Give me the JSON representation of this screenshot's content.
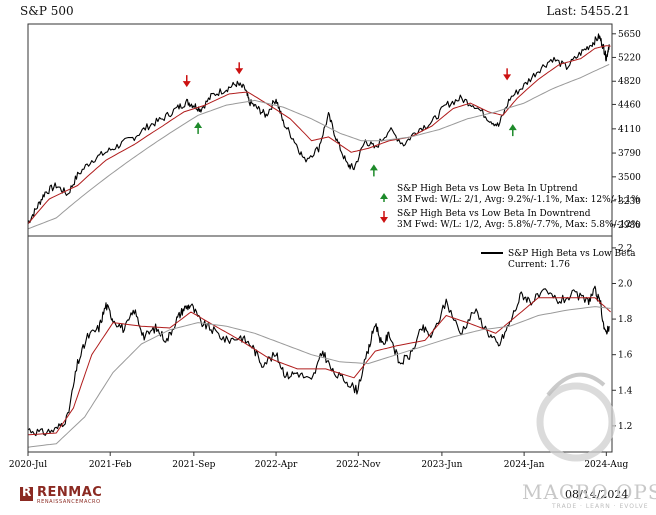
{
  "header": {
    "title": "S&P 500",
    "last": "Last: 5455.21"
  },
  "footer": {
    "date": "08/14/2024",
    "logo_letter": "R",
    "logo_name": "RENMAC",
    "logo_sub": "RENAISSANCEMACRO"
  },
  "watermark": {
    "name": "MACRO OPS",
    "tagline": "TRADE · LEARN · EVOLVE"
  },
  "colors": {
    "price": "#000000",
    "ma_short": "#b01c1c",
    "ma_long": "#9a9a9a",
    "up_arrow": "#1d8a2a",
    "down_arrow": "#cc1111",
    "frame": "#333333"
  },
  "annotations": {
    "uptrend_title": "S&P High Beta vs Low Beta In Uptrend",
    "uptrend_stats": "3M Fwd: W/L: 2/1, Avg: 9.2%/-1.1%, Max: 12%/-1.1%",
    "downtrend_title": "S&P High Beta vs Low Beta In Downtrend",
    "downtrend_stats": "3M Fwd: W/L: 1/2, Avg: 5.8%/-7.7%, Max: 5.8%/-12%"
  },
  "legend": {
    "series": "S&P High Beta vs Low Beta",
    "current": "Current: 1.76"
  },
  "chart_data": [
    {
      "type": "line",
      "title": "S&P 500",
      "x_tick_labels": [
        "2020-Jul",
        "2021-Feb",
        "2021-Sep",
        "2022-Apr",
        "2022-Nov",
        "2023-Jun",
        "2024-Jan",
        "2024-Aug"
      ],
      "x_ticks": [
        2020.5,
        2021.08,
        2021.67,
        2022.25,
        2022.83,
        2023.42,
        2024.0,
        2024.58
      ],
      "xlim": [
        2020.5,
        2024.62
      ],
      "y_ticks": [
        2980,
        3230,
        3500,
        3790,
        4110,
        4460,
        4820,
        5220,
        5650
      ],
      "ylim": [
        2900,
        5780
      ],
      "y_scale": "log",
      "last": 5455.21,
      "series": [
        {
          "role": "price",
          "points": [
            [
              2020.5,
              3000
            ],
            [
              2020.56,
              3150
            ],
            [
              2020.62,
              3320
            ],
            [
              2020.7,
              3400
            ],
            [
              2020.78,
              3300
            ],
            [
              2020.85,
              3520
            ],
            [
              2020.95,
              3700
            ],
            [
              2021.05,
              3800
            ],
            [
              2021.15,
              3900
            ],
            [
              2021.25,
              4000
            ],
            [
              2021.35,
              4150
            ],
            [
              2021.45,
              4250
            ],
            [
              2021.55,
              4400
            ],
            [
              2021.62,
              4500
            ],
            [
              2021.67,
              4450
            ],
            [
              2021.72,
              4390
            ],
            [
              2021.8,
              4600
            ],
            [
              2021.9,
              4700
            ],
            [
              2021.97,
              4780
            ],
            [
              2022.03,
              4700
            ],
            [
              2022.06,
              4500
            ],
            [
              2022.12,
              4400
            ],
            [
              2022.18,
              4300
            ],
            [
              2022.25,
              4550
            ],
            [
              2022.3,
              4200
            ],
            [
              2022.38,
              3950
            ],
            [
              2022.45,
              3700
            ],
            [
              2022.55,
              3850
            ],
            [
              2022.62,
              4300
            ],
            [
              2022.68,
              3950
            ],
            [
              2022.75,
              3650
            ],
            [
              2022.8,
              3600
            ],
            [
              2022.88,
              3950
            ],
            [
              2022.95,
              3850
            ],
            [
              2023.05,
              4100
            ],
            [
              2023.15,
              3900
            ],
            [
              2023.25,
              4100
            ],
            [
              2023.35,
              4200
            ],
            [
              2023.45,
              4450
            ],
            [
              2023.55,
              4550
            ],
            [
              2023.65,
              4450
            ],
            [
              2023.75,
              4250
            ],
            [
              2023.82,
              4150
            ],
            [
              2023.9,
              4550
            ],
            [
              2024.0,
              4750
            ],
            [
              2024.1,
              5000
            ],
            [
              2024.2,
              5200
            ],
            [
              2024.3,
              5050
            ],
            [
              2024.4,
              5300
            ],
            [
              2024.48,
              5470
            ],
            [
              2024.53,
              5600
            ],
            [
              2024.56,
              5400
            ],
            [
              2024.58,
              5200
            ],
            [
              2024.6,
              5455
            ]
          ]
        },
        {
          "role": "ma_short",
          "points": [
            [
              2020.5,
              2990
            ],
            [
              2020.65,
              3250
            ],
            [
              2020.85,
              3400
            ],
            [
              2021.05,
              3700
            ],
            [
              2021.25,
              3900
            ],
            [
              2021.45,
              4150
            ],
            [
              2021.6,
              4350
            ],
            [
              2021.75,
              4450
            ],
            [
              2021.92,
              4620
            ],
            [
              2022.05,
              4650
            ],
            [
              2022.2,
              4450
            ],
            [
              2022.35,
              4250
            ],
            [
              2022.5,
              3950
            ],
            [
              2022.62,
              4000
            ],
            [
              2022.78,
              3800
            ],
            [
              2022.9,
              3850
            ],
            [
              2023.05,
              3950
            ],
            [
              2023.2,
              4000
            ],
            [
              2023.35,
              4150
            ],
            [
              2023.5,
              4400
            ],
            [
              2023.62,
              4480
            ],
            [
              2023.75,
              4350
            ],
            [
              2023.85,
              4300
            ],
            [
              2023.95,
              4550
            ],
            [
              2024.1,
              4850
            ],
            [
              2024.25,
              5100
            ],
            [
              2024.4,
              5200
            ],
            [
              2024.5,
              5380
            ],
            [
              2024.58,
              5430
            ],
            [
              2024.61,
              5420
            ]
          ]
        },
        {
          "role": "ma_long",
          "points": [
            [
              2020.5,
              2940
            ],
            [
              2020.7,
              3050
            ],
            [
              2020.9,
              3300
            ],
            [
              2021.1,
              3550
            ],
            [
              2021.3,
              3800
            ],
            [
              2021.5,
              4050
            ],
            [
              2021.7,
              4300
            ],
            [
              2021.9,
              4450
            ],
            [
              2022.1,
              4520
            ],
            [
              2022.3,
              4420
            ],
            [
              2022.5,
              4250
            ],
            [
              2022.7,
              4050
            ],
            [
              2022.85,
              3950
            ],
            [
              2023.0,
              3950
            ],
            [
              2023.2,
              4000
            ],
            [
              2023.4,
              4100
            ],
            [
              2023.6,
              4250
            ],
            [
              2023.8,
              4350
            ],
            [
              2024.0,
              4480
            ],
            [
              2024.2,
              4700
            ],
            [
              2024.4,
              4880
            ],
            [
              2024.6,
              5100
            ]
          ]
        }
      ],
      "signals": [
        {
          "dir": "down",
          "x": 2021.62,
          "y": 4790
        },
        {
          "dir": "up",
          "x": 2021.7,
          "y": 4150
        },
        {
          "dir": "down",
          "x": 2021.99,
          "y": 5000
        },
        {
          "dir": "up",
          "x": 2022.94,
          "y": 3600
        },
        {
          "dir": "down",
          "x": 2023.88,
          "y": 4900
        },
        {
          "dir": "up",
          "x": 2023.92,
          "y": 4120
        }
      ]
    },
    {
      "type": "line",
      "title": "S&P High Beta vs Low Beta",
      "ylim": [
        1.07,
        2.25
      ],
      "y_ticks": [
        1.2,
        1.4,
        1.6,
        1.8,
        2.0,
        2.2
      ],
      "current": 1.76,
      "series": [
        {
          "name": "S&P High Beta vs Low Beta",
          "role": "price",
          "points": [
            [
              2020.5,
              1.18
            ],
            [
              2020.6,
              1.16
            ],
            [
              2020.7,
              1.18
            ],
            [
              2020.78,
              1.25
            ],
            [
              2020.85,
              1.55
            ],
            [
              2020.92,
              1.7
            ],
            [
              2021.0,
              1.75
            ],
            [
              2021.05,
              1.88
            ],
            [
              2021.1,
              1.8
            ],
            [
              2021.18,
              1.74
            ],
            [
              2021.25,
              1.85
            ],
            [
              2021.32,
              1.7
            ],
            [
              2021.4,
              1.75
            ],
            [
              2021.48,
              1.68
            ],
            [
              2021.55,
              1.8
            ],
            [
              2021.6,
              1.86
            ],
            [
              2021.65,
              1.88
            ],
            [
              2021.72,
              1.78
            ],
            [
              2021.8,
              1.74
            ],
            [
              2021.9,
              1.68
            ],
            [
              2022.0,
              1.7
            ],
            [
              2022.08,
              1.65
            ],
            [
              2022.15,
              1.55
            ],
            [
              2022.25,
              1.6
            ],
            [
              2022.32,
              1.48
            ],
            [
              2022.4,
              1.5
            ],
            [
              2022.5,
              1.45
            ],
            [
              2022.58,
              1.62
            ],
            [
              2022.65,
              1.5
            ],
            [
              2022.75,
              1.45
            ],
            [
              2022.82,
              1.4
            ],
            [
              2022.9,
              1.62
            ],
            [
              2022.95,
              1.78
            ],
            [
              2023.0,
              1.65
            ],
            [
              2023.05,
              1.72
            ],
            [
              2023.12,
              1.55
            ],
            [
              2023.2,
              1.6
            ],
            [
              2023.28,
              1.75
            ],
            [
              2023.35,
              1.7
            ],
            [
              2023.45,
              1.9
            ],
            [
              2023.55,
              1.72
            ],
            [
              2023.65,
              1.85
            ],
            [
              2023.75,
              1.72
            ],
            [
              2023.82,
              1.65
            ],
            [
              2023.9,
              1.78
            ],
            [
              2023.98,
              1.94
            ],
            [
              2024.05,
              1.9
            ],
            [
              2024.15,
              1.95
            ],
            [
              2024.25,
              1.9
            ],
            [
              2024.35,
              1.94
            ],
            [
              2024.45,
              1.9
            ],
            [
              2024.5,
              1.96
            ],
            [
              2024.54,
              1.88
            ],
            [
              2024.57,
              1.72
            ],
            [
              2024.6,
              1.76
            ]
          ]
        },
        {
          "role": "ma_short",
          "points": [
            [
              2020.5,
              1.15
            ],
            [
              2020.7,
              1.16
            ],
            [
              2020.82,
              1.3
            ],
            [
              2020.95,
              1.6
            ],
            [
              2021.1,
              1.78
            ],
            [
              2021.3,
              1.76
            ],
            [
              2021.5,
              1.75
            ],
            [
              2021.65,
              1.84
            ],
            [
              2021.8,
              1.77
            ],
            [
              2022.0,
              1.68
            ],
            [
              2022.2,
              1.58
            ],
            [
              2022.4,
              1.52
            ],
            [
              2022.6,
              1.52
            ],
            [
              2022.8,
              1.47
            ],
            [
              2022.95,
              1.62
            ],
            [
              2023.1,
              1.65
            ],
            [
              2023.3,
              1.68
            ],
            [
              2023.45,
              1.82
            ],
            [
              2023.6,
              1.78
            ],
            [
              2023.8,
              1.72
            ],
            [
              2023.95,
              1.82
            ],
            [
              2024.1,
              1.92
            ],
            [
              2024.3,
              1.92
            ],
            [
              2024.5,
              1.92
            ],
            [
              2024.61,
              1.84
            ]
          ]
        },
        {
          "role": "ma_long",
          "points": [
            [
              2020.5,
              1.08
            ],
            [
              2020.7,
              1.1
            ],
            [
              2020.9,
              1.25
            ],
            [
              2021.1,
              1.5
            ],
            [
              2021.3,
              1.66
            ],
            [
              2021.5,
              1.74
            ],
            [
              2021.7,
              1.78
            ],
            [
              2021.9,
              1.76
            ],
            [
              2022.1,
              1.72
            ],
            [
              2022.3,
              1.66
            ],
            [
              2022.5,
              1.6
            ],
            [
              2022.7,
              1.56
            ],
            [
              2022.9,
              1.55
            ],
            [
              2023.1,
              1.6
            ],
            [
              2023.3,
              1.65
            ],
            [
              2023.5,
              1.7
            ],
            [
              2023.7,
              1.74
            ],
            [
              2023.9,
              1.76
            ],
            [
              2024.1,
              1.82
            ],
            [
              2024.3,
              1.85
            ],
            [
              2024.5,
              1.87
            ],
            [
              2024.61,
              1.86
            ]
          ]
        }
      ]
    }
  ]
}
